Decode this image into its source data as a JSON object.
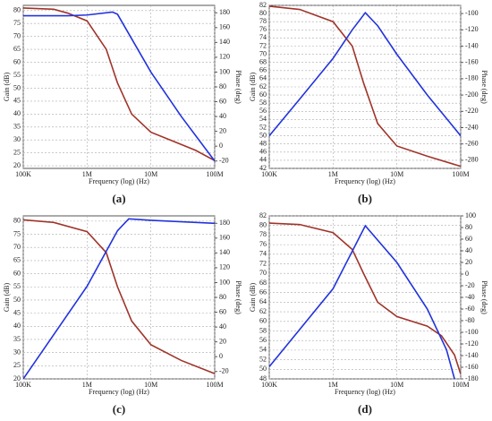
{
  "chart_data": [
    {
      "type": "line",
      "label": "(a)",
      "xlabel": "Frequency (log) (Hz)",
      "ylabel": "Gain (dB)",
      "y2label": "Phase (deg)",
      "log_x": true,
      "grid": true,
      "xlim": [
        100000,
        100000000
      ],
      "xticks": [
        {
          "value": 100000,
          "label": "100K"
        },
        {
          "value": 1000000,
          "label": "1M"
        },
        {
          "value": 10000000,
          "label": "10M"
        },
        {
          "value": 100000000,
          "label": "100M"
        }
      ],
      "ylim": [
        19,
        82
      ],
      "yticks": [
        20,
        25,
        30,
        35,
        40,
        45,
        50,
        55,
        60,
        65,
        70,
        75,
        80
      ],
      "y2lim": [
        -30,
        190
      ],
      "y2ticks": [
        -20,
        0,
        20,
        40,
        60,
        80,
        100,
        120,
        140,
        160,
        180
      ],
      "series": [
        {
          "name": "Gain",
          "color": "#a0342a",
          "x": [
            100000,
            300000,
            500000,
            1000000,
            2000000,
            3000000,
            5000000,
            10000000,
            20000000,
            50000000,
            100000000
          ],
          "values": [
            81,
            80.5,
            79,
            76,
            65,
            52,
            40,
            33,
            30,
            26,
            22
          ]
        },
        {
          "name": "Phase",
          "color": "#2233dd",
          "axis": "y2",
          "x": [
            100000,
            500000,
            1000000,
            2500000,
            3000000,
            10000000,
            30000000,
            100000000
          ],
          "values": [
            176,
            176,
            177,
            181,
            178,
            100,
            40,
            -20
          ]
        }
      ]
    },
    {
      "type": "line",
      "label": "(b)",
      "xlabel": "Frequency (log) (Hz)",
      "ylabel": "Gain (dB)",
      "y2label": "Phase (deg)",
      "log_x": true,
      "grid": true,
      "xlim": [
        100000,
        100000000
      ],
      "xticks": [
        {
          "value": 100000,
          "label": "100K"
        },
        {
          "value": 1000000,
          "label": "1M"
        },
        {
          "value": 10000000,
          "label": "10M"
        },
        {
          "value": 100000000,
          "label": "100M"
        }
      ],
      "ylim": [
        42,
        82
      ],
      "yticks": [
        42,
        44,
        46,
        48,
        50,
        52,
        54,
        56,
        58,
        60,
        62,
        64,
        66,
        68,
        70,
        72,
        74,
        76,
        78,
        80,
        82
      ],
      "y2lim": [
        -290,
        -90
      ],
      "y2ticks": [
        -280,
        -260,
        -240,
        -220,
        -200,
        -180,
        -160,
        -140,
        -120,
        -100
      ],
      "series": [
        {
          "name": "Gain",
          "color": "#a0342a",
          "x": [
            100000,
            300000,
            1000000,
            2000000,
            3000000,
            5000000,
            10000000,
            30000000,
            100000000
          ],
          "values": [
            81.8,
            81,
            78,
            72,
            63,
            53,
            47.5,
            45,
            42.5
          ]
        },
        {
          "name": "Phase",
          "color": "#2233dd",
          "axis": "y2",
          "x": [
            100000,
            300000,
            1000000,
            2000000,
            3200000,
            5000000,
            10000000,
            30000000,
            100000000
          ],
          "values": [
            -250,
            -205,
            -155,
            -120,
            -99,
            -115,
            -150,
            -200,
            -250
          ]
        }
      ]
    },
    {
      "type": "line",
      "label": "(c)",
      "xlabel": "Frequency (log) (Hz)",
      "ylabel": "Gain (dB)",
      "y2label": "Phase (deg)",
      "log_x": true,
      "grid": true,
      "xlim": [
        100000,
        100000000
      ],
      "xticks": [
        {
          "value": 100000,
          "label": "100K"
        },
        {
          "value": 1000000,
          "label": "1M"
        },
        {
          "value": 10000000,
          "label": "10M"
        },
        {
          "value": 100000000,
          "label": "100M"
        }
      ],
      "ylim": [
        20,
        82
      ],
      "yticks": [
        20,
        25,
        30,
        35,
        40,
        45,
        50,
        55,
        60,
        65,
        70,
        75,
        80
      ],
      "y2lim": [
        -30,
        190
      ],
      "y2ticks": [
        -20,
        0,
        20,
        40,
        60,
        80,
        100,
        120,
        140,
        160,
        180
      ],
      "series": [
        {
          "name": "Gain",
          "color": "#a0342a",
          "x": [
            100000,
            300000,
            1000000,
            2000000,
            3000000,
            5000000,
            10000000,
            30000000,
            100000000
          ],
          "values": [
            80.5,
            79.5,
            76,
            68,
            55,
            42,
            33,
            27,
            22
          ]
        },
        {
          "name": "Phase",
          "color": "#2233dd",
          "axis": "y2",
          "x": [
            100000,
            1000000,
            3000000,
            4500000,
            10000000,
            100000000
          ],
          "values": [
            -30,
            95,
            170,
            186,
            184,
            180
          ]
        }
      ]
    },
    {
      "type": "line",
      "label": "(d)",
      "xlabel": "Frequency (log) (Hz)",
      "ylabel": "Gain (dB)",
      "y2label": "Phase (deg)",
      "log_x": true,
      "grid": true,
      "xlim": [
        100000,
        100000000
      ],
      "xticks": [
        {
          "value": 100000,
          "label": "100K"
        },
        {
          "value": 1000000,
          "label": "1M"
        },
        {
          "value": 10000000,
          "label": "10M"
        },
        {
          "value": 100000000,
          "label": "100M"
        }
      ],
      "ylim": [
        48,
        82
      ],
      "yticks": [
        48,
        50,
        52,
        54,
        56,
        58,
        60,
        62,
        64,
        66,
        68,
        70,
        72,
        74,
        76,
        78,
        80,
        82
      ],
      "y2lim": [
        -180,
        100
      ],
      "y2ticks": [
        -180,
        -160,
        -140,
        -120,
        -100,
        -80,
        -60,
        -40,
        -20,
        0,
        20,
        40,
        60,
        80,
        100
      ],
      "series": [
        {
          "name": "Gain",
          "color": "#a0342a",
          "x": [
            100000,
            300000,
            1000000,
            2000000,
            3000000,
            5000000,
            10000000,
            30000000,
            50000000,
            80000000,
            100000000
          ],
          "values": [
            80.5,
            80.2,
            78.5,
            75,
            70,
            64,
            61,
            59,
            57,
            53,
            49
          ]
        },
        {
          "name": "Phase",
          "color": "#2233dd",
          "axis": "y2",
          "x": [
            100000,
            1000000,
            3200000,
            10000000,
            30000000,
            60000000,
            80000000
          ],
          "values": [
            -159,
            -25,
            83,
            20,
            -60,
            -130,
            -180
          ]
        }
      ]
    }
  ]
}
